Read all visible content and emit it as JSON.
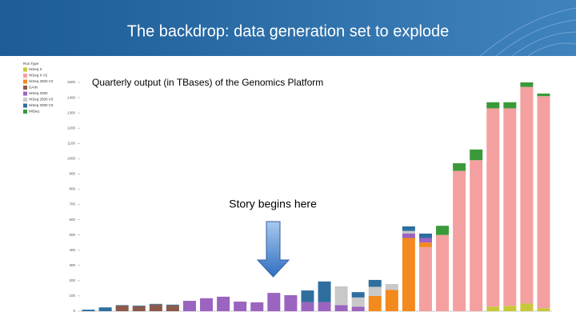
{
  "slide_title": "The backdrop: data generation set to explode",
  "chart_data": {
    "type": "stacked-bar",
    "title": "Quarterly output (in TBases) of the Genomics Platform",
    "annotation": "Story begins here",
    "categories": [
      null,
      null,
      null,
      null,
      null,
      null,
      null,
      null,
      null,
      null,
      null,
      null,
      null,
      null,
      null,
      null,
      null,
      null,
      null,
      null,
      null,
      null,
      null,
      null,
      null,
      null,
      null,
      null
    ],
    "ylim": [
      0,
      1500
    ],
    "yticks": [
      0,
      100,
      200,
      300,
      400,
      500,
      600,
      700,
      800,
      900,
      1000,
      1100,
      1200,
      1300,
      1400,
      1500
    ],
    "legend_title": "Run Type",
    "series": [
      {
        "name": "HiSeq X",
        "color": "#c8c83a",
        "values": [
          null,
          null,
          null,
          null,
          null,
          null,
          null,
          null,
          null,
          null,
          null,
          null,
          null,
          null,
          null,
          null,
          null,
          null,
          null,
          null,
          null,
          null,
          null,
          null,
          30,
          35,
          50,
          20
        ]
      },
      {
        "name": "HiSeq X V2",
        "color": "#f4a0a0",
        "values": [
          null,
          null,
          null,
          null,
          null,
          null,
          null,
          null,
          null,
          null,
          null,
          null,
          null,
          null,
          null,
          null,
          null,
          null,
          null,
          null,
          420,
          500,
          920,
          990,
          1300,
          1295,
          1420,
          1390
        ]
      },
      {
        "name": "HiSeq 2500 V4",
        "color": "#f28a1e",
        "values": [
          null,
          null,
          null,
          null,
          null,
          null,
          null,
          null,
          null,
          null,
          null,
          null,
          null,
          null,
          null,
          null,
          null,
          100,
          140,
          480,
          30,
          null,
          null,
          null,
          null,
          null,
          null,
          null
        ]
      },
      {
        "name": "GAIIx",
        "color": "#8b5a4a",
        "values": [
          null,
          null,
          37,
          33,
          43,
          39,
          null,
          null,
          null,
          null,
          null,
          null,
          null,
          null,
          null,
          null,
          null,
          null,
          null,
          null,
          null,
          null,
          null,
          null,
          null,
          null,
          null,
          null
        ]
      },
      {
        "name": "HiSeq 2000",
        "color": "#9a64c0",
        "values": [
          null,
          null,
          null,
          null,
          null,
          null,
          68,
          85,
          95,
          63,
          58,
          120,
          105,
          60,
          60,
          40,
          30,
          null,
          null,
          30,
          30,
          null,
          null,
          null,
          null,
          null,
          null,
          null
        ]
      },
      {
        "name": "HiSeq 2500 V3",
        "color": "#c8c8c8",
        "values": [
          null,
          null,
          null,
          null,
          null,
          null,
          null,
          null,
          null,
          null,
          null,
          null,
          null,
          null,
          null,
          123,
          60,
          60,
          38,
          16,
          null,
          null,
          null,
          null,
          null,
          null,
          null,
          null
        ]
      },
      {
        "name": "HiSeq 2000 V3",
        "color": "#2f6f9f",
        "values": [
          10,
          25,
          3,
          4,
          5,
          4,
          null,
          null,
          null,
          null,
          null,
          null,
          null,
          76,
          135,
          null,
          35,
          45,
          null,
          30,
          29,
          null,
          null,
          null,
          null,
          null,
          null,
          null
        ]
      },
      {
        "name": "MiSeq",
        "color": "#3a9a3a",
        "values": [
          null,
          null,
          null,
          null,
          null,
          null,
          null,
          null,
          null,
          null,
          null,
          null,
          null,
          null,
          null,
          null,
          null,
          null,
          null,
          null,
          null,
          60,
          50,
          70,
          40,
          40,
          30,
          17
        ]
      }
    ]
  }
}
